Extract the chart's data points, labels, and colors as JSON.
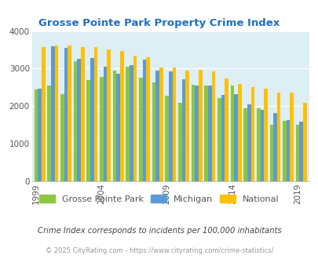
{
  "title": "Grosse Pointe Park Property Crime Index",
  "years": [
    1999,
    2000,
    2001,
    2002,
    2003,
    2004,
    2005,
    2006,
    2007,
    2008,
    2009,
    2010,
    2011,
    2012,
    2013,
    2014,
    2015,
    2016,
    2017,
    2018,
    2019
  ],
  "gpp": [
    2450,
    2540,
    2330,
    3200,
    2700,
    2780,
    2950,
    3050,
    2750,
    2630,
    2270,
    2090,
    2570,
    2540,
    2220,
    2540,
    1950,
    1950,
    1510,
    1600,
    1510
  ],
  "michigan": [
    2460,
    3590,
    3560,
    3250,
    3290,
    3060,
    2860,
    3100,
    3240,
    2950,
    2930,
    2710,
    2560,
    2560,
    2300,
    2330,
    2040,
    1900,
    1810,
    1640,
    1590
  ],
  "national": [
    3570,
    3620,
    3620,
    3580,
    3570,
    3510,
    3460,
    3340,
    3310,
    3040,
    3040,
    2950,
    2960,
    2920,
    2730,
    2600,
    2510,
    2460,
    2360,
    2360,
    2100
  ],
  "gpp_color": "#8dc63f",
  "michigan_color": "#5b9bd5",
  "national_color": "#ffc000",
  "plot_bg_color": "#ddeef5",
  "ylim": [
    0,
    4000
  ],
  "yticks": [
    0,
    1000,
    2000,
    3000,
    4000
  ],
  "legend_labels": [
    "Grosse Pointe Park",
    "Michigan",
    "National"
  ],
  "footnote1": "Crime Index corresponds to incidents per 100,000 inhabitants",
  "footnote2": "© 2025 CityRating.com - https://www.cityrating.com/crime-statistics/",
  "title_color": "#1f6fbf",
  "footnote1_color": "#444444",
  "footnote2_color": "#999999",
  "bar_width": 0.28,
  "grid_color": "#ffffff",
  "axis_label_color": "#555555",
  "tick_years": [
    1999,
    2004,
    2009,
    2014,
    2019
  ]
}
